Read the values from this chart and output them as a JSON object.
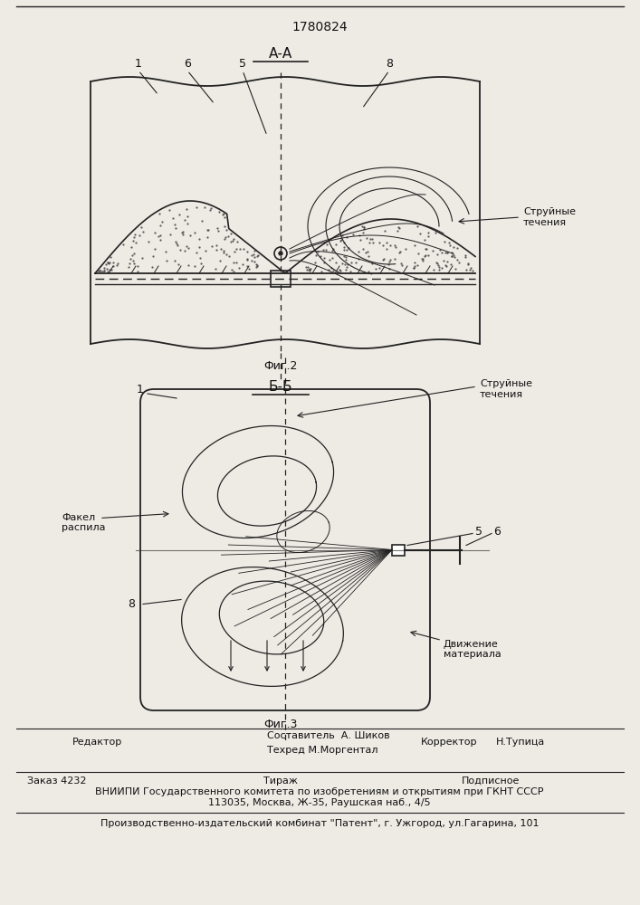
{
  "title_patent": "1780824",
  "fig2_label": "А-А",
  "fig3_label": "Б-Б",
  "fig2_caption": "Фиг.2",
  "fig3_caption": "Фиг.3",
  "label_струйные_течения1": "Струйные\nтечения",
  "label_струйные_течения2": "Струйные\nтечения",
  "label_факел_распила": "Факел\nраспила",
  "label_движение_материала": "Движение\nматериала",
  "footer_line1": "Составитель  А. Шиков",
  "footer_line2": "Техред М.Моргентал",
  "footer_редактор": "Редактор",
  "footer_корректор": "Корректор",
  "footer_корректор_name": "Н.Тупица",
  "footer_заказ": "Заказ 4232",
  "footer_тираж": "Тираж",
  "footer_подписное": "Подписное",
  "footer_вниипи": "ВНИИПИ Государственного комитета по изобретениям и открытиям при ГКНТ СССР",
  "footer_адрес": "113035, Москва, Ж-35, Раушская наб., 4/5",
  "footer_производство": "Производственно-издательский комбинат \"Патент\", г. Ужгород, ул.Гагарина, 101",
  "bg_color": "#eeebe5",
  "line_color": "#222222",
  "text_color": "#111111"
}
